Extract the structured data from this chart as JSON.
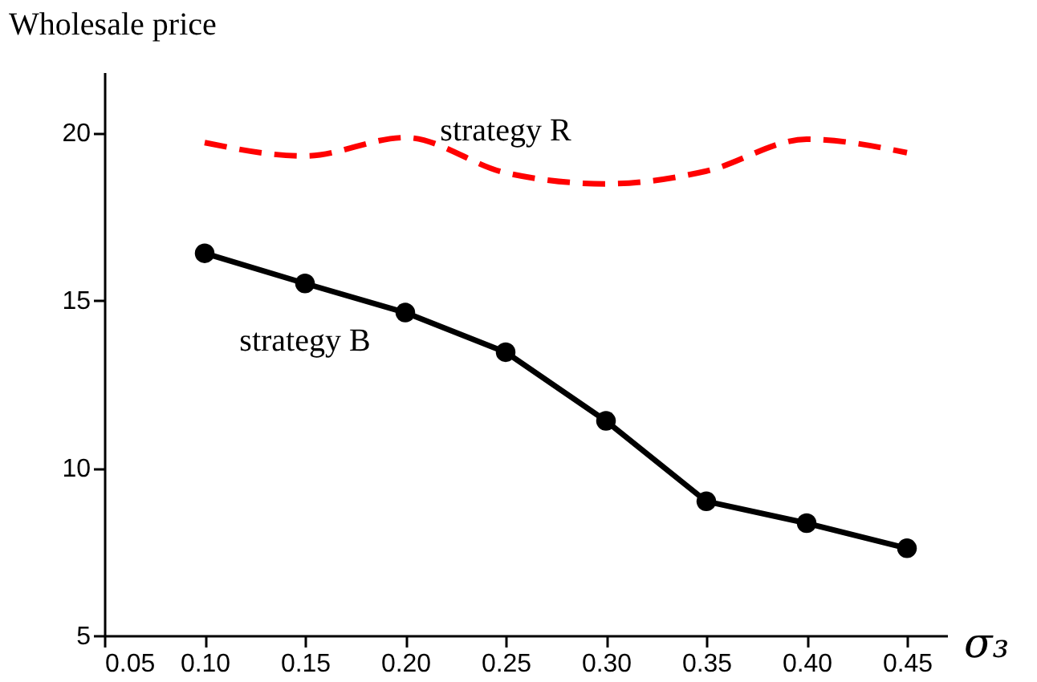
{
  "chart_data": {
    "type": "line",
    "xlabel": "σ₃",
    "ylabel": "Wholesale price",
    "x": [
      0.1,
      0.15,
      0.2,
      0.25,
      0.3,
      0.35,
      0.4,
      0.45
    ],
    "series": [
      {
        "name": "strategy R",
        "color": "#ff0000",
        "line_style": "dashed",
        "marker": "none",
        "values": [
          19.7,
          19.3,
          19.85,
          18.8,
          18.47,
          18.85,
          19.8,
          19.4
        ]
      },
      {
        "name": "strategy B",
        "color": "#000000",
        "line_style": "solid",
        "marker": "circle",
        "values": [
          16.4,
          15.5,
          14.63,
          13.45,
          11.4,
          9.0,
          8.35,
          7.6
        ]
      }
    ],
    "xlim": [
      0.05,
      0.47
    ],
    "ylim": [
      5,
      21.8
    ],
    "xticks": [
      {
        "value": 0.05,
        "label": "0.05"
      },
      {
        "value": 0.1,
        "label": "0.10"
      },
      {
        "value": 0.15,
        "label": "0.15"
      },
      {
        "value": 0.2,
        "label": "0.20"
      },
      {
        "value": 0.25,
        "label": "0.25"
      },
      {
        "value": 0.3,
        "label": "0.30"
      },
      {
        "value": 0.35,
        "label": "0.35"
      },
      {
        "value": 0.4,
        "label": "0.40"
      },
      {
        "value": 0.45,
        "label": "0.45"
      }
    ],
    "yticks": [
      5,
      10,
      15,
      20
    ],
    "grid": false
  }
}
